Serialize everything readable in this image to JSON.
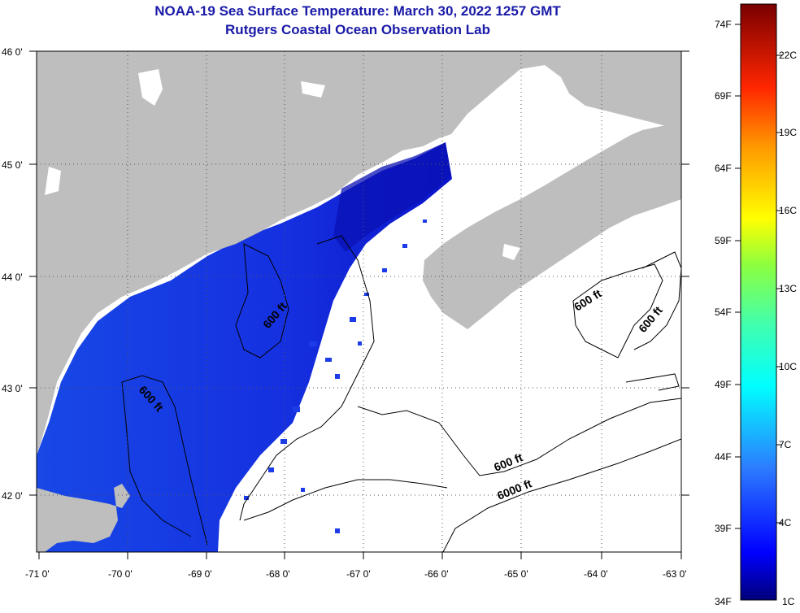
{
  "header": {
    "title": "NOAA-19 Sea Surface Temperature:  March 30, 2022 1257 GMT",
    "subtitle": "Rutgers Coastal Ocean Observation Lab"
  },
  "map": {
    "lon_labels": [
      "-71 0'",
      "-70 0'",
      "-69 0'",
      "-68 0'",
      "-67 0'",
      "-66 0'",
      "-65 0'",
      "-64 0'",
      "-63 0'"
    ],
    "lat_labels": [
      "46 0'",
      "45 0'",
      "44 0'",
      "43 0'",
      "42 0'"
    ],
    "contour_labels": [
      "600 ft",
      "600 ft",
      "600 ft",
      "600 ft",
      "600 ft",
      "6000 ft"
    ],
    "colors": {
      "land": "#bebebe",
      "water_cold": "#1a3cf0",
      "water_deep": "#0a10b0",
      "no_data": "#ffffff"
    }
  },
  "colorbar": {
    "f_labels": [
      "74F",
      "69F",
      "64F",
      "59F",
      "54F",
      "49F",
      "44F",
      "39F",
      "34F"
    ],
    "c_labels": [
      "22C",
      "19C",
      "16C",
      "13C",
      "10C",
      "7C",
      "4C",
      "1C"
    ]
  }
}
